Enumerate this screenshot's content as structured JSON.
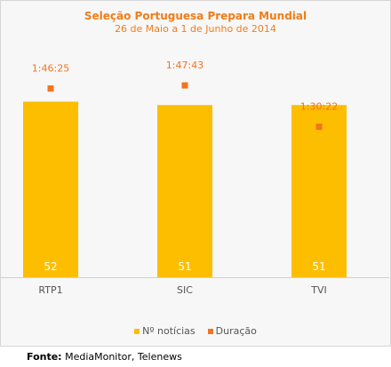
{
  "colors": {
    "bar": "#fdbe00",
    "marker": "#f4731f",
    "title": "#f07d1a"
  },
  "chart_data": {
    "type": "bar",
    "title": "Seleção Portuguesa Prepara Mundial",
    "subtitle": "26 de Maio a 1 de Junho de 2014",
    "categories": [
      "RTP1",
      "SIC",
      "TVI"
    ],
    "series": [
      {
        "name": "Nº notícias",
        "type": "bar",
        "values": [
          52,
          51,
          51
        ]
      },
      {
        "name": "Duração",
        "type": "scatter",
        "values": [
          "1:46:25",
          "1:47:43",
          "1:30:22"
        ],
        "seconds": [
          6385,
          6463,
          5422
        ]
      }
    ],
    "ylim": [
      0,
      60
    ],
    "grid": false,
    "legend_position": "bottom"
  },
  "legend": [
    {
      "label": "Nº notícias",
      "marker": "bar"
    },
    {
      "label": "Duração",
      "marker": "marker"
    }
  ],
  "source": {
    "label": "Fonte:",
    "text": "MediaMonitor, Telenews"
  }
}
